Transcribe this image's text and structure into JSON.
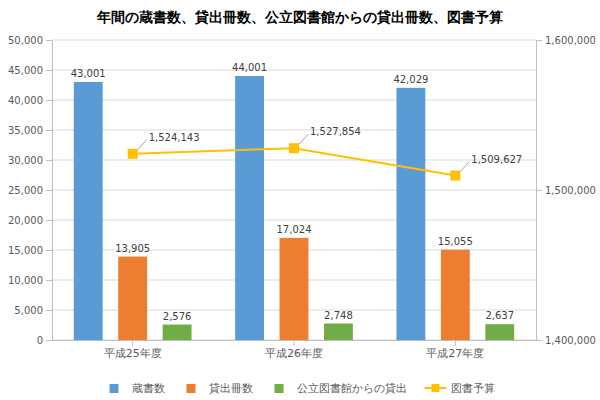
{
  "chart_data": {
    "type": "bar",
    "title": "年間の蔵書数、貸出冊数、公立図書館からの貸出冊数、図書予算",
    "categories": [
      "平成25年度",
      "平成26年度",
      "平成27年度"
    ],
    "series": [
      {
        "name": "蔵書数",
        "type": "bar",
        "color": "#5b9bd5",
        "values": [
          43001,
          44001,
          42029
        ],
        "value_labels": [
          "43,001",
          "44,001",
          "42,029"
        ]
      },
      {
        "name": "貸出冊数",
        "type": "bar",
        "color": "#ed7d31",
        "values": [
          13905,
          17024,
          15055
        ],
        "value_labels": [
          "13,905",
          "17,024",
          "15,055"
        ]
      },
      {
        "name": "公立図書館からの貸出",
        "type": "bar",
        "color": "#70ad47",
        "values": [
          2576,
          2748,
          2637
        ],
        "value_labels": [
          "2,576",
          "2,748",
          "2,637"
        ]
      },
      {
        "name": "図書予算",
        "type": "line",
        "axis": "y2",
        "marker": "square",
        "color": "#ffc000",
        "values": [
          1524143,
          1527854,
          1509627
        ],
        "value_labels": [
          "1,524,143",
          "1,527,854",
          "1,509,627"
        ]
      }
    ],
    "ylim": [
      0,
      50000
    ],
    "yticks": [
      0,
      {
        "value": 5000,
        "label": "5,000"
      },
      {
        "value": 10000,
        "label": "10,000"
      },
      {
        "value": 15000,
        "label": "15,000"
      },
      {
        "value": 20000,
        "label": "20,000"
      },
      {
        "value": 25000,
        "label": "25,000"
      },
      {
        "value": 30000,
        "label": "30,000"
      },
      {
        "value": 35000,
        "label": "35,000"
      },
      {
        "value": 40000,
        "label": "40,000"
      },
      {
        "value": 45000,
        "label": "45,000"
      },
      {
        "value": 50000,
        "label": "50,000"
      }
    ],
    "y2lim": [
      1400000,
      1600000
    ],
    "y2ticks": [
      {
        "value": 1400000,
        "label": "1,400,000"
      },
      {
        "value": 1500000,
        "label": "1,500,000"
      },
      {
        "value": 1600000,
        "label": "1,600,000"
      }
    ],
    "grid": true,
    "legend": "bottom",
    "data_labels": true
  }
}
